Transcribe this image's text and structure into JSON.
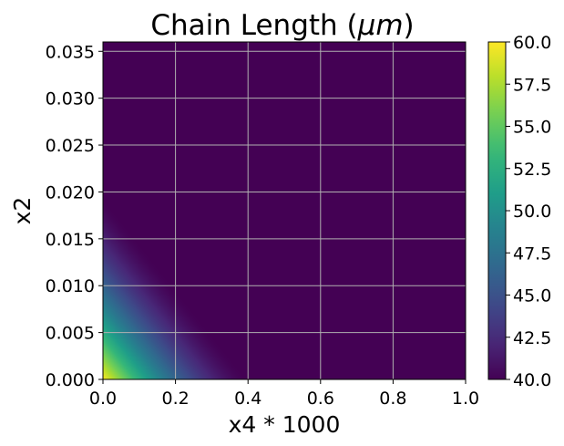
{
  "chart_data": {
    "type": "heatmap",
    "title_text": "Chain Length (",
    "title_math": "μm",
    "title_close": ")",
    "xlabel": "x4 * 1000",
    "ylabel": "x2",
    "xlim": [
      0.0,
      1.0
    ],
    "ylim": [
      0.0,
      0.036
    ],
    "x_ticks": [
      "0.0",
      "0.2",
      "0.4",
      "0.6",
      "0.8",
      "1.0"
    ],
    "x_tick_values": [
      0.0,
      0.2,
      0.4,
      0.6,
      0.8,
      1.0
    ],
    "y_ticks": [
      "0.000",
      "0.005",
      "0.010",
      "0.015",
      "0.020",
      "0.025",
      "0.030",
      "0.035"
    ],
    "y_tick_values": [
      0.0,
      0.005,
      0.01,
      0.015,
      0.02,
      0.025,
      0.03,
      0.035
    ],
    "colorbar": {
      "colormap": "viridis",
      "range": [
        40.0,
        60.0
      ],
      "ticks": [
        "40.0",
        "42.5",
        "45.0",
        "47.5",
        "50.0",
        "52.5",
        "55.0",
        "57.5",
        "60.0"
      ],
      "tick_values": [
        40.0,
        42.5,
        45.0,
        47.5,
        50.0,
        52.5,
        55.0,
        57.5,
        60.0
      ]
    },
    "field": {
      "description_values": "Chain length highest (≈60) near x4*1000=0, x2=0; decays to 40 along the diagonal boundary from x2≈0.0195 at x4=0 to x4≈0.40 at x2=0; 40 elsewhere",
      "max_value": 60.0,
      "min_value": 40.0,
      "boundary_x_at_y0": 0.4,
      "boundary_y_at_x0": 0.0195,
      "peak_point": [
        0.0,
        0.0
      ]
    },
    "grid": true,
    "legend": "none"
  }
}
